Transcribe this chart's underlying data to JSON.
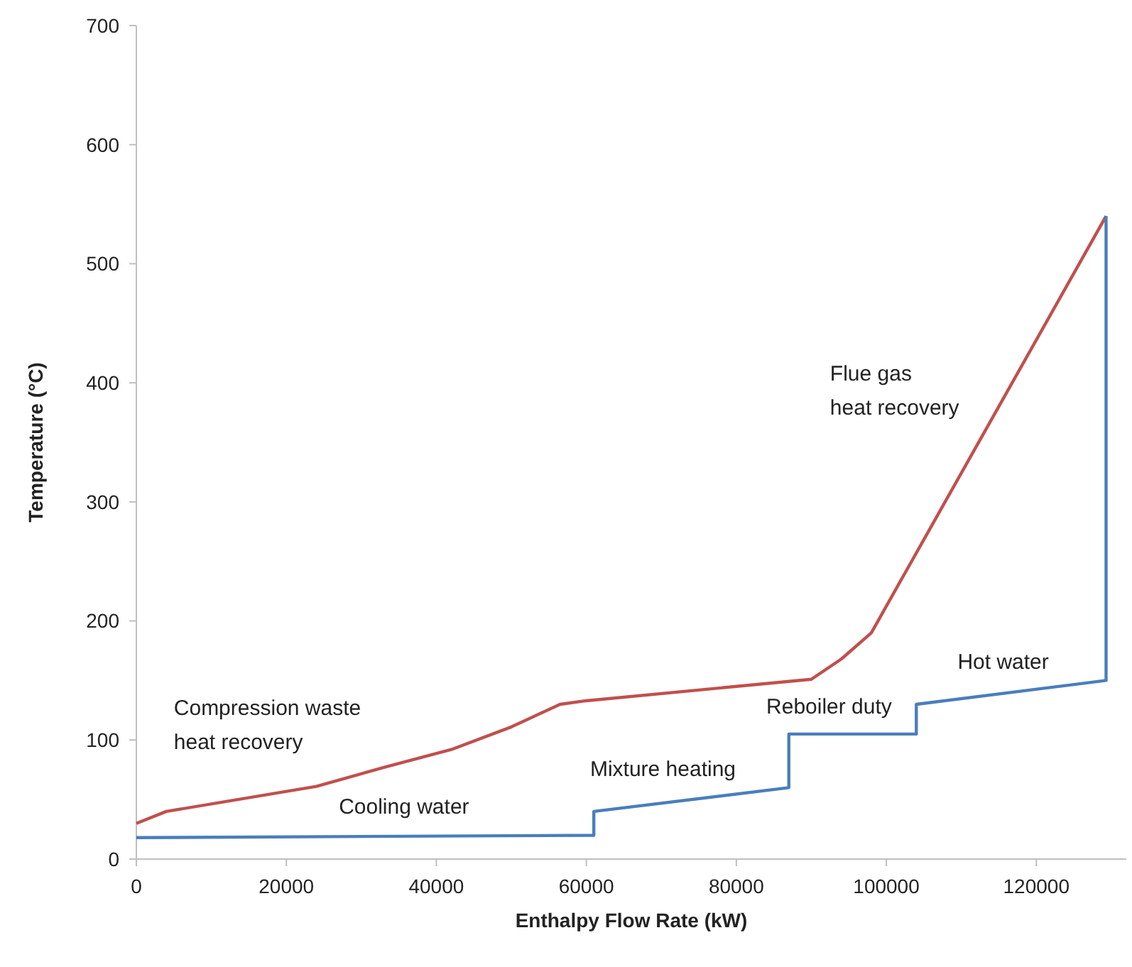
{
  "chart_data": {
    "type": "line",
    "xlabel": "Enthalpy Flow Rate (kW)",
    "ylabel": "Temperature (°C)",
    "xlim": [
      0,
      132000
    ],
    "xticks": [
      0,
      20000,
      40000,
      60000,
      80000,
      100000,
      120000
    ],
    "ylim": [
      0,
      700
    ],
    "yticks": [
      0,
      100,
      200,
      300,
      400,
      500,
      600,
      700
    ],
    "grid": false,
    "marker": "none",
    "line_style": "solid",
    "series": [
      {
        "color": "#c0504d",
        "x": [
          0,
          4000,
          24000,
          33000,
          42000,
          50000,
          56500,
          60000,
          90000,
          94000,
          98000,
          129300
        ],
        "values": [
          30,
          40,
          61,
          77,
          92,
          111,
          130,
          133,
          151,
          168,
          190,
          540
        ]
      },
      {
        "color": "#4a7ebb",
        "x": [
          0,
          61000,
          61000,
          87000,
          87000,
          104000,
          104000,
          129300,
          129300
        ],
        "values": [
          18,
          20,
          40,
          60,
          105,
          105,
          130,
          150,
          540
        ]
      }
    ],
    "annotations": [
      "Compression waste\nheat recovery",
      "Cooling water",
      "Mixture heating",
      "Reboiler duty",
      "Hot water",
      "Flue gas\nheat recovery"
    ]
  }
}
